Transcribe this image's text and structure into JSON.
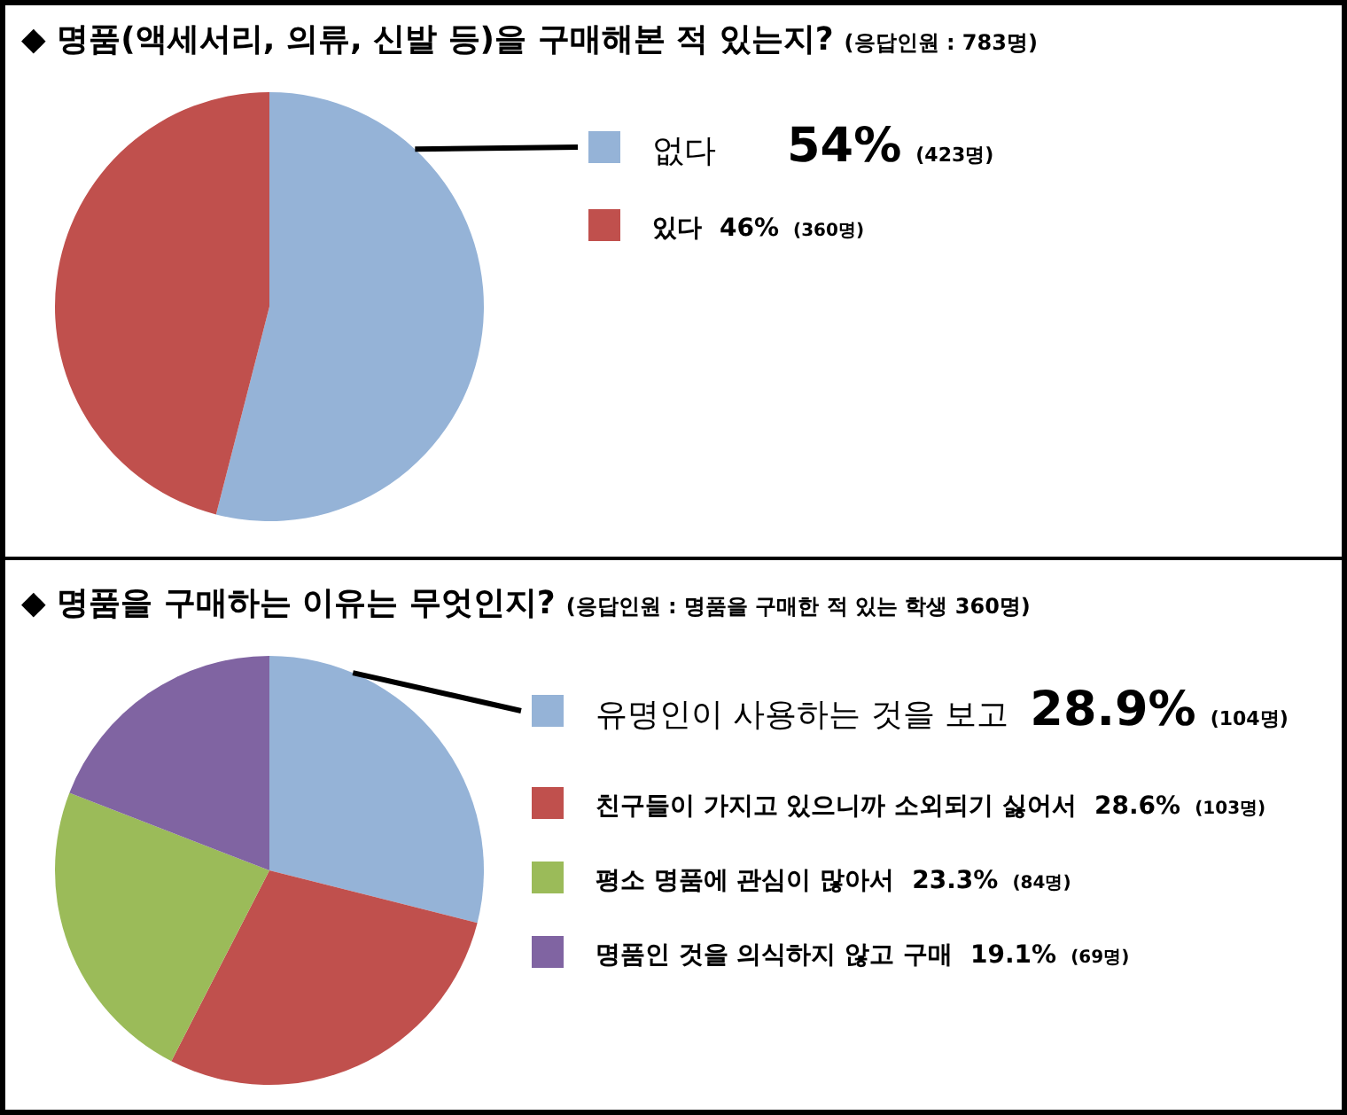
{
  "chart_data": [
    {
      "type": "pie",
      "title": "◆ 명품(액세서리, 의류, 신발 등)을 구매해본 적 있는지?",
      "subtitle": "(응답인원 : 783명)",
      "categories": [
        "없다",
        "있다"
      ],
      "values": [
        54,
        46
      ],
      "colors": [
        "#95b3d7",
        "#c0504d"
      ],
      "value_labels": [
        "54% (423명)",
        "46% (360명)"
      ],
      "legend": "right"
    },
    {
      "type": "pie",
      "title": "◆ 명품을 구매하는 이유는 무엇인지?",
      "subtitle": "(응답인원 : 명품을 구매한 적 있는 학생 360명)",
      "categories": [
        "유명인이 사용하는 것을 보고",
        "친구들이 가지고 있으니까 소외되기 싫어서",
        "평소 명품에 관심이 많아서",
        "명품인 것을 의식하지 않고 구매"
      ],
      "values": [
        28.9,
        28.6,
        23.3,
        19.1
      ],
      "colors": [
        "#95b3d7",
        "#c0504d",
        "#9bbb59",
        "#8064a2"
      ],
      "value_labels": [
        "28.9% (104명)",
        "28.6% (103명)",
        "23.3% (84명)",
        "19.1% (69명)"
      ],
      "legend": "right"
    }
  ]
}
